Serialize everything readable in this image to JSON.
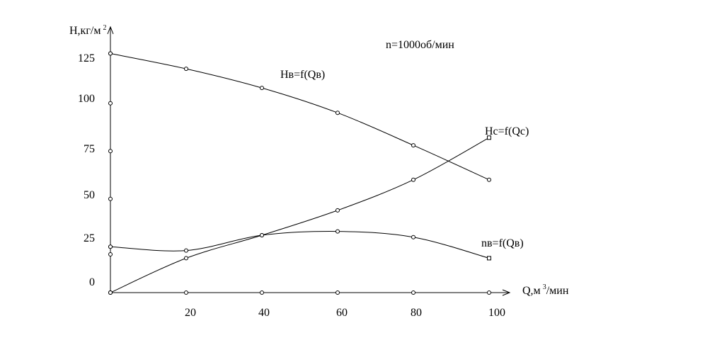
{
  "chart_data": {
    "type": "line",
    "title": "n=1000об/мин",
    "ylabel": "H,кг/м",
    "ylabel_sup": "2",
    "xlabel": "Q,м",
    "xlabel_sup": "3",
    "xlabel_suffix": "/мин",
    "x_ticks": [
      "20",
      "40",
      "60",
      "80",
      "100"
    ],
    "y_ticks": [
      "0",
      "25",
      "50",
      "75",
      "100",
      "125"
    ],
    "xlim": [
      0,
      105
    ],
    "ylim": [
      0,
      138
    ],
    "grid": false,
    "series": [
      {
        "name": "Hв=f(Qв)",
        "x": [
          0,
          20,
          40,
          60,
          80,
          100
        ],
        "y": [
          125,
          117,
          107,
          94,
          77,
          59
        ]
      },
      {
        "name": "Hc=f(Qc)",
        "x": [
          0,
          20,
          40,
          60,
          80,
          100
        ],
        "y": [
          0,
          18,
          30,
          43,
          59,
          81
        ]
      },
      {
        "name": "nв=f(Qв)",
        "x": [
          0,
          20,
          40,
          60,
          80,
          100
        ],
        "y": [
          24,
          22,
          30,
          32,
          29,
          18
        ]
      }
    ],
    "axis_markers": {
      "y_axis_y": [
        0,
        20,
        24,
        49,
        74,
        99,
        125
      ],
      "x_axis_x": [
        0,
        20,
        40,
        60,
        80,
        100
      ]
    }
  }
}
